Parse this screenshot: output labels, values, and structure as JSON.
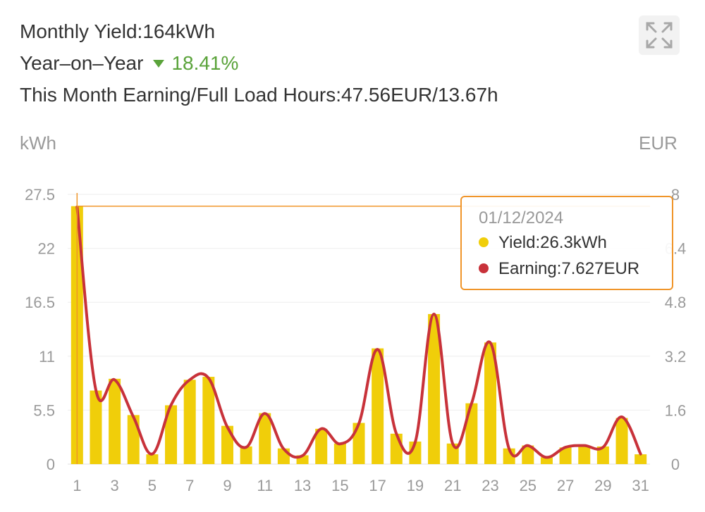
{
  "summary": {
    "monthly_yield": "Monthly Yield:164kWh",
    "yoy_label": "Year–on–Year",
    "yoy_value": "18.41%",
    "earning_hours": "This Month Earning/Full Load Hours:47.56EUR/13.67h"
  },
  "colors": {
    "yield_bar": "#f0ce0a",
    "earning_line": "#c8323a",
    "tooltip_border": "#f0952a",
    "yoy_down": "#5aa33a"
  },
  "icons": {
    "expand": "expand-arrows-icon"
  },
  "tooltip": {
    "date": "01/12/2024",
    "yield": "Yield:26.3kWh",
    "earning": "Earning:7.627EUR"
  },
  "chart_data": {
    "type": "bar",
    "x": [
      1,
      2,
      3,
      4,
      5,
      6,
      7,
      8,
      9,
      10,
      11,
      12,
      13,
      14,
      15,
      16,
      17,
      18,
      19,
      20,
      21,
      22,
      23,
      24,
      25,
      26,
      27,
      28,
      29,
      30,
      31
    ],
    "x_tick_labels": [
      "1",
      "3",
      "5",
      "7",
      "9",
      "11",
      "13",
      "15",
      "17",
      "19",
      "21",
      "23",
      "25",
      "27",
      "29",
      "31"
    ],
    "y_left_unit": "kWh",
    "y_right_unit": "EUR",
    "y_left_ticks": [
      "0",
      "5.5",
      "11",
      "16.5",
      "22",
      "27.5"
    ],
    "y_right_ticks": [
      "0",
      "1.6",
      "3.2",
      "4.8",
      "6.4",
      "8"
    ],
    "ylim_left": [
      0,
      27.5
    ],
    "ylim_right": [
      0,
      8
    ],
    "grid": true,
    "series": [
      {
        "name": "Yield",
        "type": "bar",
        "axis": "left",
        "values": [
          26.3,
          7.5,
          8.7,
          5.0,
          1.0,
          6.0,
          8.6,
          8.9,
          3.9,
          1.8,
          5.2,
          1.6,
          0.9,
          3.6,
          2.1,
          4.2,
          11.8,
          3.1,
          2.3,
          15.3,
          2.1,
          6.2,
          12.4,
          1.6,
          1.9,
          0.7,
          1.7,
          1.9,
          1.8,
          4.7,
          1.0
        ]
      },
      {
        "name": "Earning",
        "type": "line",
        "axis": "right",
        "values": [
          7.627,
          2.2,
          2.5,
          1.4,
          0.3,
          1.75,
          2.5,
          2.55,
          1.1,
          0.5,
          1.5,
          0.45,
          0.25,
          1.05,
          0.6,
          1.2,
          3.4,
          0.9,
          0.65,
          4.45,
          0.6,
          1.8,
          3.6,
          0.45,
          0.55,
          0.2,
          0.5,
          0.55,
          0.5,
          1.4,
          0.3
        ]
      }
    ],
    "highlighted_point": {
      "x": 1
    }
  }
}
